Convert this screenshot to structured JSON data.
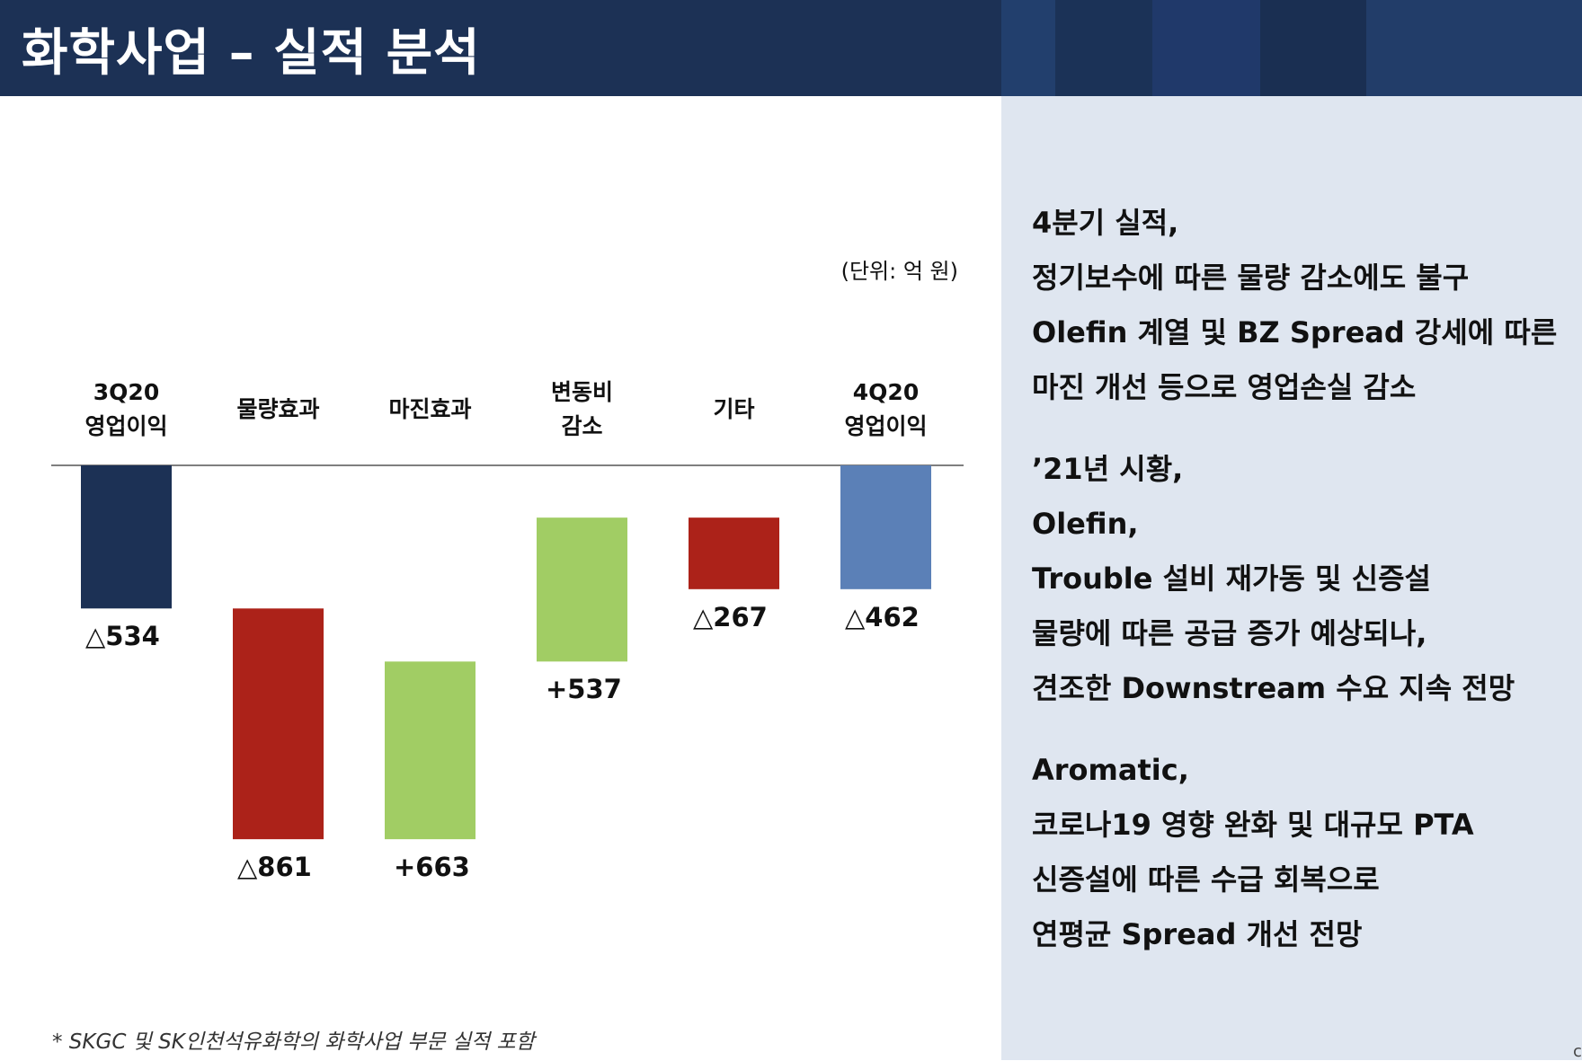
{
  "header": {
    "title": "화학사업 – 실적 분석",
    "background_color": "#1c3155",
    "tile_colors": [
      "#223f6d",
      "#1b3257",
      "#20396a",
      "#1a2f52",
      "#223d69"
    ]
  },
  "chart": {
    "unit_label": "(단위: 억 원)"
  },
  "chart_data": {
    "type": "bar",
    "subtype": "waterfall",
    "title": "",
    "xlabel": "",
    "ylabel": "",
    "categories": [
      "3Q20\n영업이익",
      "물량효과",
      "마진효과",
      "변동비\n감소",
      "기타",
      "4Q20\n영업이익"
    ],
    "values": [
      -534,
      -861,
      663,
      537,
      -267,
      -462
    ],
    "value_labels": [
      "△534",
      "△861",
      "+663",
      "+537",
      "△267",
      "△462"
    ],
    "bar_roles": [
      "total",
      "delta",
      "delta",
      "delta",
      "delta",
      "total"
    ],
    "colors": {
      "total_start": "#1c3155",
      "decrease": "#ac2219",
      "increase": "#a1cd64",
      "total_end": "#5b80b7"
    },
    "ylim": [
      -1395,
      0
    ],
    "grid": false,
    "legend": "none"
  },
  "footnote": "* SKGC 및 SK인천석유화학의 화학사업 부문 실적 포함",
  "commentary": [
    [
      "4분기 실적,",
      "정기보수에 따른 물량 감소에도 불구",
      "Olefin 계열 및 BZ Spread 강세에 따른",
      "마진 개선 등으로 영업손실 감소"
    ],
    [
      "’21년 시황,",
      "Olefin,",
      "Trouble 설비 재가동 및 신증설",
      "물량에 따른 공급 증가 예상되나,",
      "견조한 Downstream 수요 지속 전망"
    ],
    [
      "Aromatic,",
      "코로나19 영향 완화 및 대규모 PTA",
      "신증설에 따른 수급 회복으로",
      "연평균 Spread 개선 전망"
    ]
  ],
  "corner_mark": "c"
}
